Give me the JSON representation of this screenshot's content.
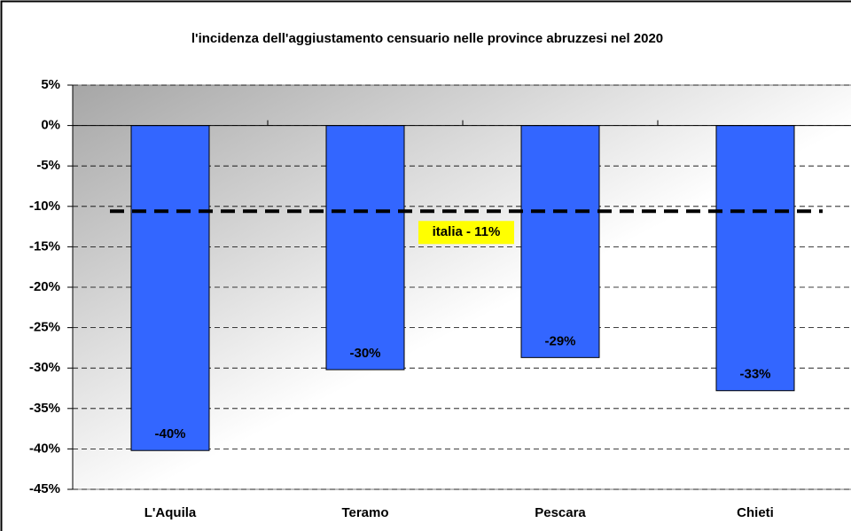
{
  "chart_data": {
    "type": "bar",
    "title": "l'incidenza dell'aggiustamento censuario nelle province abruzzesi nel 2020",
    "categories": [
      "L'Aquila",
      "Teramo",
      "Pescara",
      "Chieti"
    ],
    "values": [
      -40.2,
      -30.2,
      -28.7,
      -32.8
    ],
    "value_labels": [
      "-40%",
      "-30%",
      "-29%",
      "-33%"
    ],
    "color": "#3366ff",
    "ylim": [
      -45,
      5
    ],
    "yticks": [
      {
        "value": 5,
        "label": "5%"
      },
      {
        "value": 0,
        "label": "0%"
      },
      {
        "value": -5,
        "label": "-5%"
      },
      {
        "value": -10,
        "label": "-10%"
      },
      {
        "value": -15,
        "label": "-15%"
      },
      {
        "value": -20,
        "label": "-20%"
      },
      {
        "value": -25,
        "label": "-25%"
      },
      {
        "value": -30,
        "label": "-30%"
      },
      {
        "value": -35,
        "label": "-35%"
      },
      {
        "value": -40,
        "label": "-40%"
      },
      {
        "value": -45,
        "label": "-45%"
      }
    ],
    "grid": true,
    "reference_line": {
      "value": -10.6,
      "label": "italia - 11%",
      "label_color": "#ffff00"
    }
  }
}
